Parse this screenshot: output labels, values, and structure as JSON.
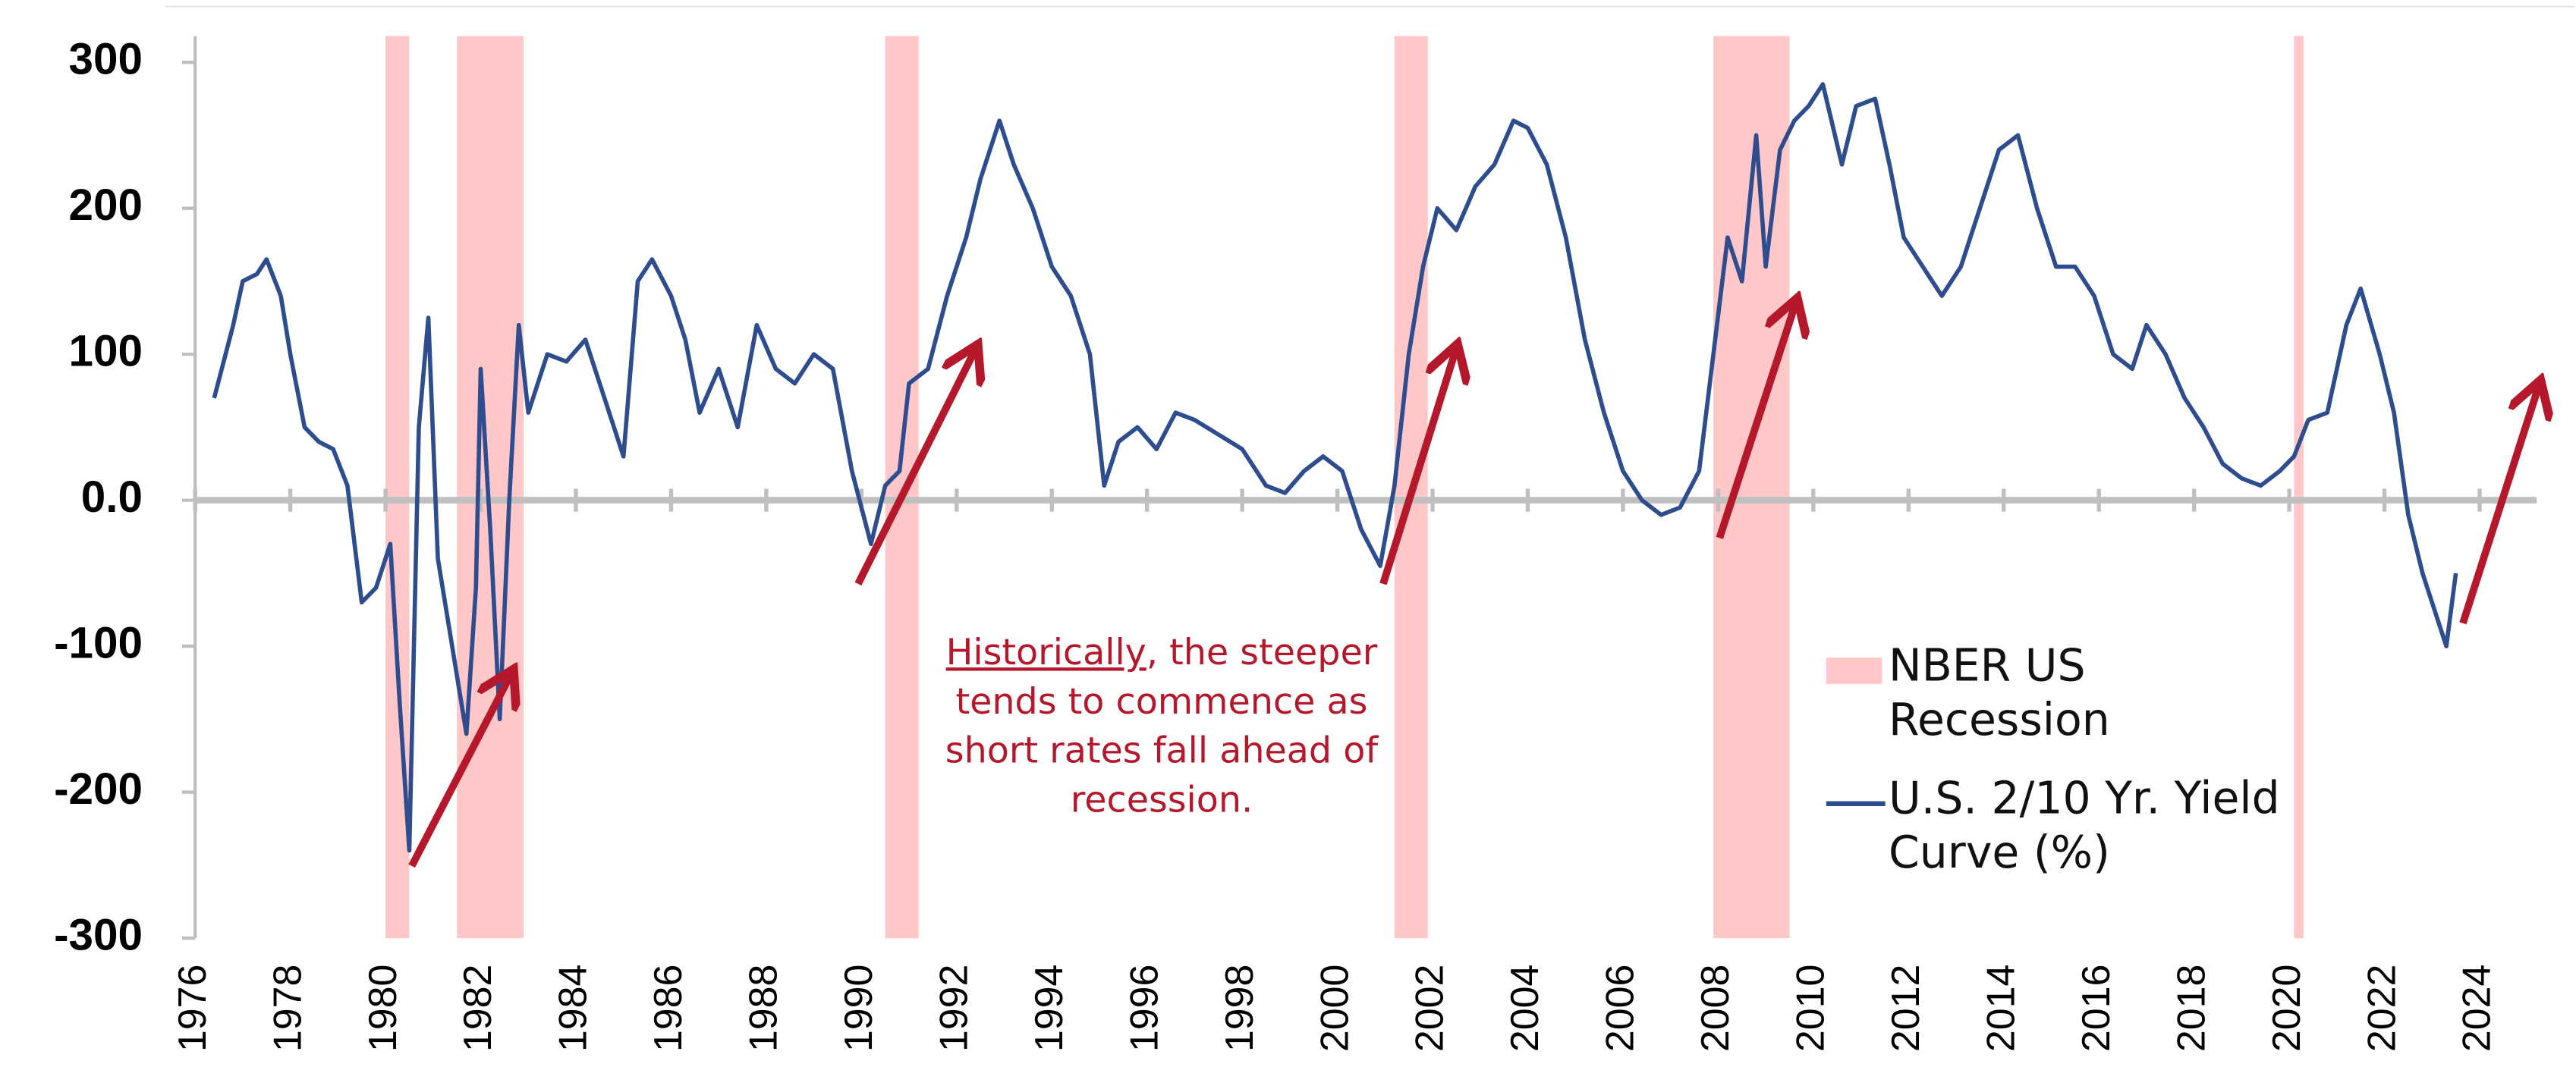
{
  "chart_data": {
    "type": "line",
    "xlim": [
      1976,
      2025.2
    ],
    "xticks": [
      1976,
      1978,
      1980,
      1982,
      1984,
      1986,
      1988,
      1990,
      1992,
      1994,
      1996,
      1998,
      2000,
      2002,
      2004,
      2006,
      2008,
      2010,
      2012,
      2014,
      2016,
      2018,
      2020,
      2022,
      2024
    ],
    "ylim": [
      -300,
      300
    ],
    "yticks": [
      -300,
      -200,
      -100,
      {
        "value": 0,
        "label": "0.0"
      },
      100,
      200,
      300
    ],
    "recessions": {
      "name": "NBER US Recession",
      "color": "#ffc7c7",
      "ranges": [
        [
          1980.0,
          1980.5
        ],
        [
          1981.5,
          1982.9
        ],
        [
          1990.5,
          1991.2
        ],
        [
          2001.2,
          2001.9
        ],
        [
          2007.9,
          2009.5
        ],
        [
          2020.1,
          2020.3
        ]
      ]
    },
    "annotation": {
      "underlined": "Historically",
      "text": ", the steeper tends to commence as short rates fall ahead of recession."
    },
    "x": [
      1976.4,
      1976.8,
      1977.0,
      1977.3,
      1977.5,
      1977.8,
      1978.0,
      1978.3,
      1978.6,
      1978.9,
      1979.2,
      1979.5,
      1979.8,
      1980.1,
      1980.3,
      1980.5,
      1980.7,
      1980.9,
      1981.1,
      1981.4,
      1981.7,
      1981.9,
      1982.0,
      1982.2,
      1982.4,
      1982.6,
      1982.8,
      1983.0,
      1983.4,
      1983.8,
      1984.2,
      1984.6,
      1985.0,
      1985.3,
      1985.6,
      1986.0,
      1986.3,
      1986.6,
      1987.0,
      1987.4,
      1987.8,
      1988.2,
      1988.6,
      1989.0,
      1989.4,
      1989.8,
      1990.2,
      1990.5,
      1990.8,
      1991.0,
      1991.4,
      1991.8,
      1992.2,
      1992.5,
      1992.9,
      1993.2,
      1993.6,
      1994.0,
      1994.4,
      1994.8,
      1995.1,
      1995.4,
      1995.8,
      1996.2,
      1996.6,
      1997.0,
      1997.5,
      1998.0,
      1998.5,
      1998.9,
      1999.3,
      1999.7,
      2000.1,
      2000.5,
      2000.9,
      2001.2,
      2001.5,
      2001.8,
      2002.1,
      2002.5,
      2002.9,
      2003.3,
      2003.7,
      2004.0,
      2004.4,
      2004.8,
      2005.2,
      2005.6,
      2006.0,
      2006.4,
      2006.8,
      2007.2,
      2007.6,
      2007.9,
      2008.2,
      2008.5,
      2008.8,
      2009.0,
      2009.3,
      2009.6,
      2009.9,
      2010.2,
      2010.6,
      2010.9,
      2011.3,
      2011.6,
      2011.9,
      2012.3,
      2012.7,
      2013.1,
      2013.5,
      2013.9,
      2014.3,
      2014.7,
      2015.1,
      2015.5,
      2015.9,
      2016.3,
      2016.7,
      2017.0,
      2017.4,
      2017.8,
      2018.2,
      2018.6,
      2019.0,
      2019.4,
      2019.8,
      2020.1,
      2020.4,
      2020.8,
      2021.2,
      2021.5,
      2021.9,
      2022.2,
      2022.5,
      2022.8,
      2023.1,
      2023.3,
      2023.5
    ],
    "series": [
      {
        "name": "U.S. 2/10 Yr. Yield Curve (%)",
        "color": "#2e4d8f",
        "values": [
          70,
          120,
          150,
          155,
          165,
          140,
          100,
          50,
          40,
          35,
          10,
          -70,
          -60,
          -30,
          -140,
          -240,
          50,
          125,
          -40,
          -100,
          -160,
          -60,
          90,
          -20,
          -150,
          0,
          120,
          60,
          100,
          95,
          110,
          70,
          30,
          150,
          165,
          140,
          110,
          60,
          90,
          50,
          120,
          90,
          80,
          100,
          90,
          20,
          -30,
          10,
          20,
          80,
          90,
          140,
          180,
          220,
          260,
          230,
          200,
          160,
          140,
          100,
          10,
          40,
          50,
          35,
          60,
          55,
          45,
          35,
          10,
          5,
          20,
          30,
          20,
          -20,
          -45,
          10,
          100,
          160,
          200,
          185,
          215,
          230,
          260,
          255,
          230,
          180,
          110,
          60,
          20,
          0,
          -10,
          -5,
          20,
          100,
          180,
          150,
          250,
          160,
          240,
          260,
          270,
          285,
          230,
          270,
          275,
          230,
          180,
          160,
          140,
          160,
          200,
          240,
          250,
          200,
          160,
          160,
          140,
          100,
          90,
          120,
          100,
          70,
          50,
          25,
          15,
          10,
          20,
          30,
          55,
          60,
          120,
          145,
          100,
          60,
          -10,
          -50,
          -80,
          -100,
          -50
        ]
      }
    ]
  }
}
